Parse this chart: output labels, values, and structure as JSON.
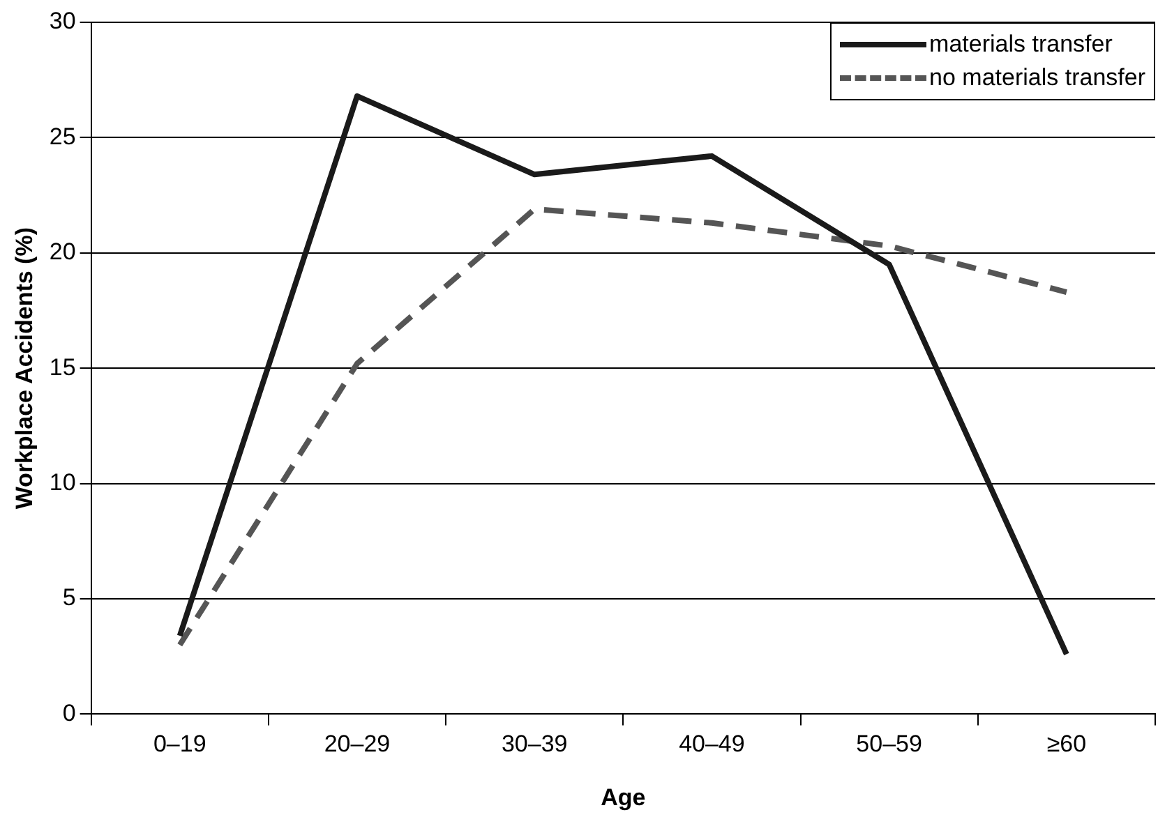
{
  "chart_data": {
    "type": "line",
    "xlabel": "Age",
    "ylabel": "Workplace Accidents (%)",
    "categories": [
      "0–19",
      "20–29",
      "30–39",
      "40–49",
      "50–59",
      "≥60"
    ],
    "series": [
      {
        "name": "materials transfer",
        "color": "#1a1a1a",
        "line_style": "solid",
        "values": [
          3.4,
          26.8,
          23.4,
          24.2,
          19.5,
          2.6
        ]
      },
      {
        "name": "no materials transfer",
        "color": "#555555",
        "line_style": "dashed",
        "values": [
          3.0,
          15.2,
          21.9,
          21.3,
          20.3,
          18.3
        ]
      }
    ],
    "ylim": [
      0,
      30
    ],
    "yticks": [
      0,
      5,
      10,
      15,
      20,
      25,
      30
    ],
    "grid": "y",
    "legend": "top right",
    "marker": "none"
  }
}
